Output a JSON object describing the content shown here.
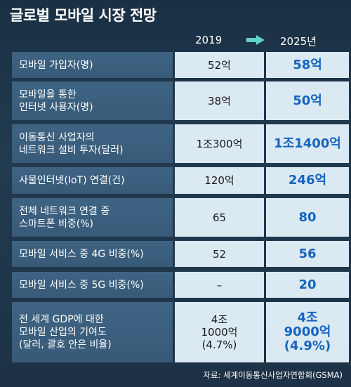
{
  "title": "글로벌 모바일 시장 전망",
  "columns": {
    "year1": "2019",
    "year2": "2025년",
    "arrow_icon": "arrow-right-icon"
  },
  "rows": [
    {
      "label": "모바일 가입자(명)",
      "v2019": "52억",
      "v2025": "58억"
    },
    {
      "label": "모바일을 통한\n인터넷 사용자(명)",
      "v2019": "38억",
      "v2025": "50억"
    },
    {
      "label": "이동통신 사업자의\n네트워크 설비 투자(달러)",
      "v2019": "1조300억",
      "v2025": "1조1400억"
    },
    {
      "label": "사물인터넷(IoT) 연결(건)",
      "v2019": "120억",
      "v2025": "246억"
    },
    {
      "label": "전체 네트워크 연결 중\n스마트폰 비중(%)",
      "v2019": "65",
      "v2025": "80"
    },
    {
      "label": "모바일 서비스 중 4G 비중(%)",
      "v2019": "52",
      "v2025": "56"
    },
    {
      "label": "모바일 서비스 중 5G 비중(%)",
      "v2019": "–",
      "v2025": "20"
    },
    {
      "label": "전 세계 GDP에 대한\n모바일 산업의 기여도\n(달러, 괄호 안은 비율)",
      "v2019": "4조\n1000억\n(4.7%)",
      "v2025": "4조\n9000억\n(4.9%)"
    }
  ],
  "source": "자료: 세계이동통신사업자연합회(GSMA)",
  "colors": {
    "background": "#1e3347",
    "label_bg": "#3f6483",
    "value_bg": "#dbe9f3",
    "highlight_text": "#1565c0",
    "arrow": "#5fd3c4"
  }
}
